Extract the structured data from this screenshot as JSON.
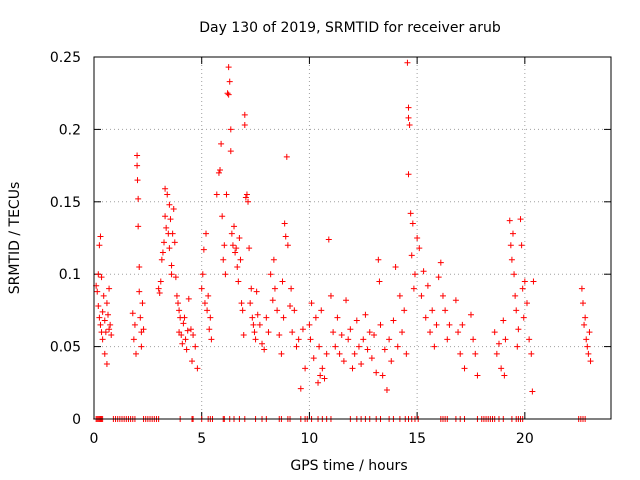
{
  "chart_data": {
    "type": "scatter",
    "title": "Day 130 of 2019, SRMTID for receiver arub",
    "xlabel": "GPS time / hours",
    "ylabel": "SRMTID / TECUs",
    "xlim": [
      0,
      24
    ],
    "ylim": [
      0,
      0.25
    ],
    "grid": true,
    "marker": "+",
    "color": "#ff0000",
    "x_ticks": [
      0,
      5,
      10,
      15,
      20
    ],
    "x_tick_labels": [
      "0",
      "5",
      "10",
      "15",
      "20"
    ],
    "y_ticks": [
      0,
      0.05,
      0.1,
      0.15,
      0.2,
      0.25
    ],
    "y_tick_labels": [
      "0",
      "0.05",
      "0.1",
      "0.15",
      "0.2",
      "0.25"
    ],
    "series": [
      {
        "name": "SRMTID",
        "points": [
          [
            0.1,
            0.092
          ],
          [
            0.15,
            0.088
          ],
          [
            0.2,
            0.1
          ],
          [
            0.2,
            0.078
          ],
          [
            0.25,
            0.12
          ],
          [
            0.25,
            0.07
          ],
          [
            0.3,
            0.065
          ],
          [
            0.3,
            0.126
          ],
          [
            0.35,
            0.098
          ],
          [
            0.35,
            0.06
          ],
          [
            0.4,
            0.074
          ],
          [
            0.4,
            0.055
          ],
          [
            0.45,
            0.085
          ],
          [
            0.5,
            0.068
          ],
          [
            0.5,
            0.045
          ],
          [
            0.55,
            0.06
          ],
          [
            0.6,
            0.08
          ],
          [
            0.6,
            0.038
          ],
          [
            0.65,
            0.072
          ],
          [
            0.7,
            0.062
          ],
          [
            0.7,
            0.09
          ],
          [
            0.75,
            0.065
          ],
          [
            0.8,
            0.058
          ],
          [
            1.8,
            0.073
          ],
          [
            1.85,
            0.055
          ],
          [
            1.9,
            0.065
          ],
          [
            1.95,
            0.045
          ],
          [
            2.0,
            0.182
          ],
          [
            2.0,
            0.175
          ],
          [
            2.02,
            0.165
          ],
          [
            2.05,
            0.152
          ],
          [
            2.05,
            0.133
          ],
          [
            2.1,
            0.105
          ],
          [
            2.1,
            0.088
          ],
          [
            2.15,
            0.07
          ],
          [
            2.2,
            0.06
          ],
          [
            2.2,
            0.05
          ],
          [
            2.25,
            0.08
          ],
          [
            2.3,
            0.062
          ],
          [
            3.0,
            0.09
          ],
          [
            3.05,
            0.087
          ],
          [
            3.1,
            0.095
          ],
          [
            3.15,
            0.11
          ],
          [
            3.2,
            0.115
          ],
          [
            3.25,
            0.122
          ],
          [
            3.3,
            0.159
          ],
          [
            3.3,
            0.14
          ],
          [
            3.35,
            0.132
          ],
          [
            3.4,
            0.155
          ],
          [
            3.45,
            0.128
          ],
          [
            3.5,
            0.148
          ],
          [
            3.5,
            0.118
          ],
          [
            3.55,
            0.138
          ],
          [
            3.6,
            0.106
          ],
          [
            3.6,
            0.1
          ],
          [
            3.65,
            0.128
          ],
          [
            3.7,
            0.145
          ],
          [
            3.75,
            0.122
          ],
          [
            3.8,
            0.098
          ],
          [
            3.85,
            0.085
          ],
          [
            3.9,
            0.08
          ],
          [
            3.95,
            0.075
          ],
          [
            3.95,
            0.06
          ],
          [
            4.0,
            0.07
          ],
          [
            4.05,
            0.058
          ],
          [
            4.1,
            0.052
          ],
          [
            4.15,
            0.066
          ],
          [
            4.2,
            0.07
          ],
          [
            4.25,
            0.055
          ],
          [
            4.3,
            0.048
          ],
          [
            4.35,
            0.061
          ],
          [
            4.4,
            0.083
          ],
          [
            4.5,
            0.062
          ],
          [
            4.55,
            0.04
          ],
          [
            4.6,
            0.058
          ],
          [
            4.7,
            0.05
          ],
          [
            4.8,
            0.035
          ],
          [
            5.0,
            0.09
          ],
          [
            5.05,
            0.1
          ],
          [
            5.1,
            0.117
          ],
          [
            5.15,
            0.08
          ],
          [
            5.2,
            0.128
          ],
          [
            5.25,
            0.075
          ],
          [
            5.3,
            0.085
          ],
          [
            5.35,
            0.062
          ],
          [
            5.4,
            0.07
          ],
          [
            5.45,
            0.055
          ],
          [
            5.7,
            0.155
          ],
          [
            5.8,
            0.17
          ],
          [
            5.85,
            0.172
          ],
          [
            5.9,
            0.19
          ],
          [
            5.95,
            0.14
          ],
          [
            6.0,
            0.11
          ],
          [
            6.05,
            0.12
          ],
          [
            6.1,
            0.1
          ],
          [
            6.15,
            0.155
          ],
          [
            6.2,
            0.225
          ],
          [
            6.25,
            0.224
          ],
          [
            6.25,
            0.243
          ],
          [
            6.3,
            0.233
          ],
          [
            6.35,
            0.2
          ],
          [
            6.35,
            0.185
          ],
          [
            6.4,
            0.128
          ],
          [
            6.45,
            0.12
          ],
          [
            6.5,
            0.133
          ],
          [
            6.55,
            0.115
          ],
          [
            6.6,
            0.118
          ],
          [
            6.65,
            0.105
          ],
          [
            6.7,
            0.095
          ],
          [
            6.75,
            0.125
          ],
          [
            6.8,
            0.11
          ],
          [
            6.85,
            0.08
          ],
          [
            6.9,
            0.075
          ],
          [
            6.95,
            0.058
          ],
          [
            7.0,
            0.203
          ],
          [
            7.0,
            0.21
          ],
          [
            7.05,
            0.153
          ],
          [
            7.1,
            0.155
          ],
          [
            7.15,
            0.15
          ],
          [
            7.2,
            0.118
          ],
          [
            7.25,
            0.08
          ],
          [
            7.3,
            0.09
          ],
          [
            7.35,
            0.07
          ],
          [
            7.4,
            0.065
          ],
          [
            7.45,
            0.06
          ],
          [
            7.5,
            0.055
          ],
          [
            7.55,
            0.088
          ],
          [
            7.6,
            0.072
          ],
          [
            7.7,
            0.065
          ],
          [
            7.8,
            0.052
          ],
          [
            7.9,
            0.048
          ],
          [
            8.0,
            0.07
          ],
          [
            8.1,
            0.06
          ],
          [
            8.2,
            0.1
          ],
          [
            8.3,
            0.082
          ],
          [
            8.35,
            0.11
          ],
          [
            8.4,
            0.09
          ],
          [
            8.5,
            0.075
          ],
          [
            8.6,
            0.058
          ],
          [
            8.7,
            0.045
          ],
          [
            8.75,
            0.095
          ],
          [
            8.8,
            0.07
          ],
          [
            8.85,
            0.135
          ],
          [
            8.9,
            0.126
          ],
          [
            8.95,
            0.181
          ],
          [
            9.0,
            0.12
          ],
          [
            9.1,
            0.078
          ],
          [
            9.15,
            0.09
          ],
          [
            9.2,
            0.06
          ],
          [
            9.3,
            0.075
          ],
          [
            9.4,
            0.05
          ],
          [
            9.5,
            0.055
          ],
          [
            9.6,
            0.021
          ],
          [
            9.7,
            0.062
          ],
          [
            9.8,
            0.035
          ],
          [
            10.0,
            0.065
          ],
          [
            10.05,
            0.055
          ],
          [
            10.1,
            0.08
          ],
          [
            10.2,
            0.042
          ],
          [
            10.3,
            0.07
          ],
          [
            10.4,
            0.025
          ],
          [
            10.45,
            0.05
          ],
          [
            10.5,
            0.03
          ],
          [
            10.55,
            0.075
          ],
          [
            10.6,
            0.035
          ],
          [
            10.7,
            0.028
          ],
          [
            10.8,
            0.045
          ],
          [
            10.9,
            0.124
          ],
          [
            11.0,
            0.085
          ],
          [
            11.1,
            0.06
          ],
          [
            11.2,
            0.05
          ],
          [
            11.3,
            0.07
          ],
          [
            11.4,
            0.045
          ],
          [
            11.5,
            0.058
          ],
          [
            11.6,
            0.04
          ],
          [
            11.7,
            0.082
          ],
          [
            11.8,
            0.055
          ],
          [
            11.9,
            0.062
          ],
          [
            12.0,
            0.035
          ],
          [
            12.1,
            0.045
          ],
          [
            12.2,
            0.068
          ],
          [
            12.3,
            0.05
          ],
          [
            12.4,
            0.038
          ],
          [
            12.5,
            0.055
          ],
          [
            12.6,
            0.072
          ],
          [
            12.7,
            0.048
          ],
          [
            12.8,
            0.06
          ],
          [
            12.9,
            0.042
          ],
          [
            13.0,
            0.058
          ],
          [
            13.1,
            0.032
          ],
          [
            13.2,
            0.11
          ],
          [
            13.25,
            0.095
          ],
          [
            13.3,
            0.065
          ],
          [
            13.4,
            0.03
          ],
          [
            13.5,
            0.048
          ],
          [
            13.6,
            0.02
          ],
          [
            13.7,
            0.055
          ],
          [
            13.8,
            0.04
          ],
          [
            13.9,
            0.068
          ],
          [
            14.0,
            0.105
          ],
          [
            14.1,
            0.05
          ],
          [
            14.2,
            0.085
          ],
          [
            14.3,
            0.06
          ],
          [
            14.4,
            0.075
          ],
          [
            14.5,
            0.045
          ],
          [
            14.55,
            0.246
          ],
          [
            14.6,
            0.215
          ],
          [
            14.6,
            0.208
          ],
          [
            14.65,
            0.203
          ],
          [
            14.6,
            0.169
          ],
          [
            14.7,
            0.142
          ],
          [
            14.75,
            0.113
          ],
          [
            14.8,
            0.135
          ],
          [
            14.85,
            0.09
          ],
          [
            14.9,
            0.1
          ],
          [
            15.0,
            0.125
          ],
          [
            15.1,
            0.118
          ],
          [
            15.2,
            0.085
          ],
          [
            15.3,
            0.102
          ],
          [
            15.4,
            0.07
          ],
          [
            15.5,
            0.092
          ],
          [
            15.6,
            0.06
          ],
          [
            15.7,
            0.075
          ],
          [
            15.8,
            0.05
          ],
          [
            15.9,
            0.065
          ],
          [
            16.0,
            0.098
          ],
          [
            16.1,
            0.108
          ],
          [
            16.2,
            0.085
          ],
          [
            16.3,
            0.075
          ],
          [
            16.4,
            0.055
          ],
          [
            16.5,
            0.065
          ],
          [
            16.8,
            0.082
          ],
          [
            16.9,
            0.06
          ],
          [
            17.0,
            0.045
          ],
          [
            17.1,
            0.065
          ],
          [
            17.2,
            0.035
          ],
          [
            17.5,
            0.072
          ],
          [
            17.6,
            0.055
          ],
          [
            17.7,
            0.045
          ],
          [
            17.8,
            0.03
          ],
          [
            18.6,
            0.06
          ],
          [
            18.7,
            0.045
          ],
          [
            18.8,
            0.052
          ],
          [
            18.9,
            0.035
          ],
          [
            19.0,
            0.068
          ],
          [
            19.05,
            0.03
          ],
          [
            19.1,
            0.055
          ],
          [
            19.3,
            0.137
          ],
          [
            19.35,
            0.12
          ],
          [
            19.4,
            0.11
          ],
          [
            19.45,
            0.128
          ],
          [
            19.5,
            0.1
          ],
          [
            19.55,
            0.085
          ],
          [
            19.6,
            0.075
          ],
          [
            19.65,
            0.05
          ],
          [
            19.7,
            0.062
          ],
          [
            19.8,
            0.138
          ],
          [
            19.85,
            0.12
          ],
          [
            19.9,
            0.09
          ],
          [
            19.95,
            0.07
          ],
          [
            20.0,
            0.095
          ],
          [
            20.1,
            0.08
          ],
          [
            20.2,
            0.055
          ],
          [
            20.3,
            0.045
          ],
          [
            20.35,
            0.019
          ],
          [
            20.4,
            0.095
          ],
          [
            22.65,
            0.09
          ],
          [
            22.7,
            0.08
          ],
          [
            22.75,
            0.065
          ],
          [
            22.8,
            0.07
          ],
          [
            22.85,
            0.055
          ],
          [
            22.9,
            0.05
          ],
          [
            22.95,
            0.045
          ],
          [
            23.0,
            0.06
          ],
          [
            23.05,
            0.04
          ]
        ],
        "zero_points": [
          0.1,
          0.15,
          0.2,
          0.25,
          0.3,
          0.35,
          0.4,
          0.9,
          1.0,
          1.1,
          1.2,
          1.3,
          1.4,
          1.5,
          1.6,
          1.7,
          1.8,
          1.9,
          2.3,
          2.4,
          2.5,
          2.6,
          2.7,
          2.8,
          2.9,
          3.0,
          4.0,
          4.55,
          4.6,
          5.0,
          5.3,
          5.4,
          5.5,
          6.0,
          6.05,
          6.3,
          6.5,
          6.75,
          7.0,
          7.5,
          7.8,
          8.0,
          8.6,
          8.7,
          9.0,
          9.1,
          9.6,
          9.8,
          9.9,
          10.1,
          10.4,
          10.6,
          10.8,
          11.0,
          11.9,
          12.2,
          12.4,
          12.6,
          12.8,
          13.1,
          13.3,
          13.7,
          13.9,
          14.2,
          14.45,
          14.6,
          14.75,
          14.9,
          15.05,
          16.1,
          16.2,
          16.3,
          16.4,
          16.8,
          17.0,
          17.2,
          17.8,
          18.0,
          18.1,
          18.2,
          18.3,
          18.4,
          18.5,
          18.6,
          18.8,
          19.0,
          19.4,
          19.6,
          19.7,
          19.8,
          19.9,
          22.5,
          22.6,
          22.7,
          22.8
        ]
      }
    ]
  }
}
